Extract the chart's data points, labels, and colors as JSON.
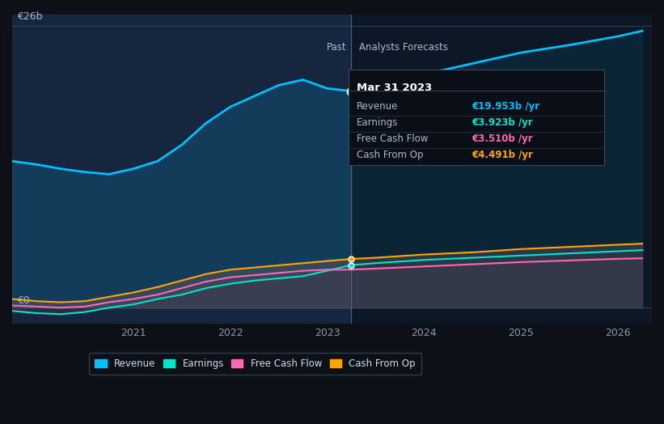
{
  "bg_color": "#0d1117",
  "plot_bg_color": "#0d1117",
  "past_bg_color": "#1a2535",
  "title_y_label": "€26b",
  "zero_y_label": "€0",
  "past_label": "Past",
  "forecast_label": "Analysts Forecasts",
  "divider_x": 2023.25,
  "x_ticks": [
    2021,
    2022,
    2023,
    2024,
    2025,
    2026
  ],
  "y_max": 26,
  "y_min": -1.5,
  "tooltip_title": "Mar 31 2023",
  "tooltip_items": [
    {
      "label": "Revenue",
      "value": "€19.953b /yr",
      "color": "#00bfff"
    },
    {
      "label": "Earnings",
      "value": "€3.923b /yr",
      "color": "#00e5cc"
    },
    {
      "label": "Free Cash Flow",
      "value": "€3.510b /yr",
      "color": "#ff69b4"
    },
    {
      "label": "Cash From Op",
      "value": "€4.491b /yr",
      "color": "#ffa500"
    }
  ],
  "legend_items": [
    {
      "label": "Revenue",
      "color": "#00bfff"
    },
    {
      "label": "Earnings",
      "color": "#00e5cc"
    },
    {
      "label": "Free Cash Flow",
      "color": "#ff69b4"
    },
    {
      "label": "Cash From Op",
      "color": "#ffa500"
    }
  ],
  "revenue_past_x": [
    2019.75,
    2020.0,
    2020.25,
    2020.5,
    2020.75,
    2021.0,
    2021.25,
    2021.5,
    2021.75,
    2022.0,
    2022.25,
    2022.5,
    2022.75,
    2023.0,
    2023.25
  ],
  "revenue_past_y": [
    13.5,
    13.2,
    12.8,
    12.5,
    12.3,
    12.8,
    13.5,
    15.0,
    17.0,
    18.5,
    19.5,
    20.5,
    21.0,
    20.2,
    19.953
  ],
  "revenue_future_x": [
    2023.25,
    2023.5,
    2024.0,
    2024.5,
    2025.0,
    2025.5,
    2026.0,
    2026.25
  ],
  "revenue_future_y": [
    19.953,
    20.5,
    21.5,
    22.5,
    23.5,
    24.2,
    25.0,
    25.5
  ],
  "earnings_past_x": [
    2019.75,
    2020.0,
    2020.25,
    2020.5,
    2020.75,
    2021.0,
    2021.25,
    2021.5,
    2021.75,
    2022.0,
    2022.25,
    2022.5,
    2022.75,
    2023.0,
    2023.25
  ],
  "earnings_past_y": [
    -0.3,
    -0.5,
    -0.6,
    -0.4,
    0.0,
    0.3,
    0.8,
    1.2,
    1.8,
    2.2,
    2.5,
    2.7,
    2.9,
    3.4,
    3.923
  ],
  "earnings_future_x": [
    2023.25,
    2023.5,
    2024.0,
    2024.5,
    2025.0,
    2025.5,
    2026.0,
    2026.25
  ],
  "earnings_future_y": [
    3.923,
    4.1,
    4.4,
    4.6,
    4.8,
    5.0,
    5.2,
    5.3
  ],
  "fcf_past_x": [
    2019.75,
    2020.0,
    2020.25,
    2020.5,
    2020.75,
    2021.0,
    2021.25,
    2021.5,
    2021.75,
    2022.0,
    2022.25,
    2022.5,
    2022.75,
    2023.0,
    2023.25
  ],
  "fcf_past_y": [
    0.2,
    0.1,
    0.0,
    0.1,
    0.5,
    0.8,
    1.2,
    1.8,
    2.4,
    2.8,
    3.0,
    3.2,
    3.4,
    3.5,
    3.51
  ],
  "fcf_future_x": [
    2023.25,
    2023.5,
    2024.0,
    2024.5,
    2025.0,
    2025.5,
    2026.0,
    2026.25
  ],
  "fcf_future_y": [
    3.51,
    3.6,
    3.8,
    4.0,
    4.2,
    4.35,
    4.5,
    4.55
  ],
  "cashop_past_x": [
    2019.75,
    2020.0,
    2020.25,
    2020.5,
    2020.75,
    2021.0,
    2021.25,
    2021.5,
    2021.75,
    2022.0,
    2022.25,
    2022.5,
    2022.75,
    2023.0,
    2023.25
  ],
  "cashop_past_y": [
    0.8,
    0.6,
    0.5,
    0.6,
    1.0,
    1.4,
    1.9,
    2.5,
    3.1,
    3.5,
    3.7,
    3.9,
    4.1,
    4.3,
    4.491
  ],
  "cashop_future_x": [
    2023.25,
    2023.5,
    2024.0,
    2024.5,
    2025.0,
    2025.5,
    2026.0,
    2026.25
  ],
  "cashop_future_y": [
    4.491,
    4.6,
    4.9,
    5.1,
    5.4,
    5.6,
    5.8,
    5.9
  ]
}
